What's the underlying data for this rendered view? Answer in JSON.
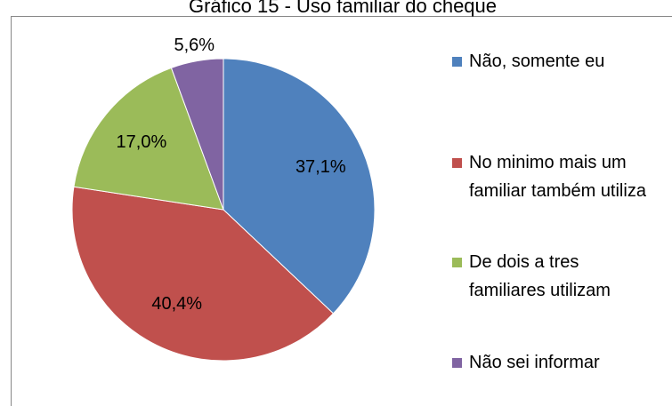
{
  "chart_data": {
    "type": "pie",
    "title": "Gráfico 15 - Uso familiar do cheque",
    "series": [
      {
        "name": "Não, somente eu",
        "color": "#4f81bd"
      },
      {
        "name": "No minimo mais um familiar também utiliza",
        "color": "#c0504d"
      },
      {
        "name": "De dois a tres familiares utilizam",
        "color": "#9bbb59"
      },
      {
        "name": "Não sei informar",
        "color": "#8064a2"
      }
    ],
    "values": [
      37.1,
      40.4,
      17.0,
      5.6
    ],
    "value_labels": [
      "37,1%",
      "40,4%",
      "17,0%",
      "5,6%"
    ],
    "legend": "right"
  }
}
